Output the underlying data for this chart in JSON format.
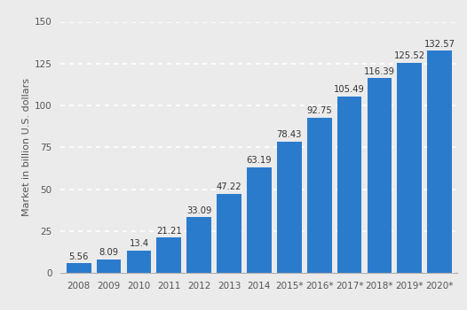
{
  "categories": [
    "2008",
    "2009",
    "2010",
    "2011",
    "2012",
    "2013",
    "2014",
    "2015*",
    "2016*",
    "2017*",
    "2018*",
    "2019*",
    "2020*"
  ],
  "values": [
    5.56,
    8.09,
    13.4,
    21.21,
    33.09,
    47.22,
    63.19,
    78.43,
    92.75,
    105.49,
    116.39,
    125.52,
    132.57
  ],
  "bar_color": "#2b7bcd",
  "ylabel": "Market in billion U.S. dollars",
  "ylim": [
    0,
    150
  ],
  "yticks": [
    0,
    25,
    50,
    75,
    100,
    125,
    150
  ],
  "background_color": "#ebebeb",
  "plot_bg_color": "#ebebeb",
  "grid_color": "#ffffff",
  "label_fontsize": 7.5,
  "bar_label_fontsize": 7.2,
  "ylabel_fontsize": 8.0
}
